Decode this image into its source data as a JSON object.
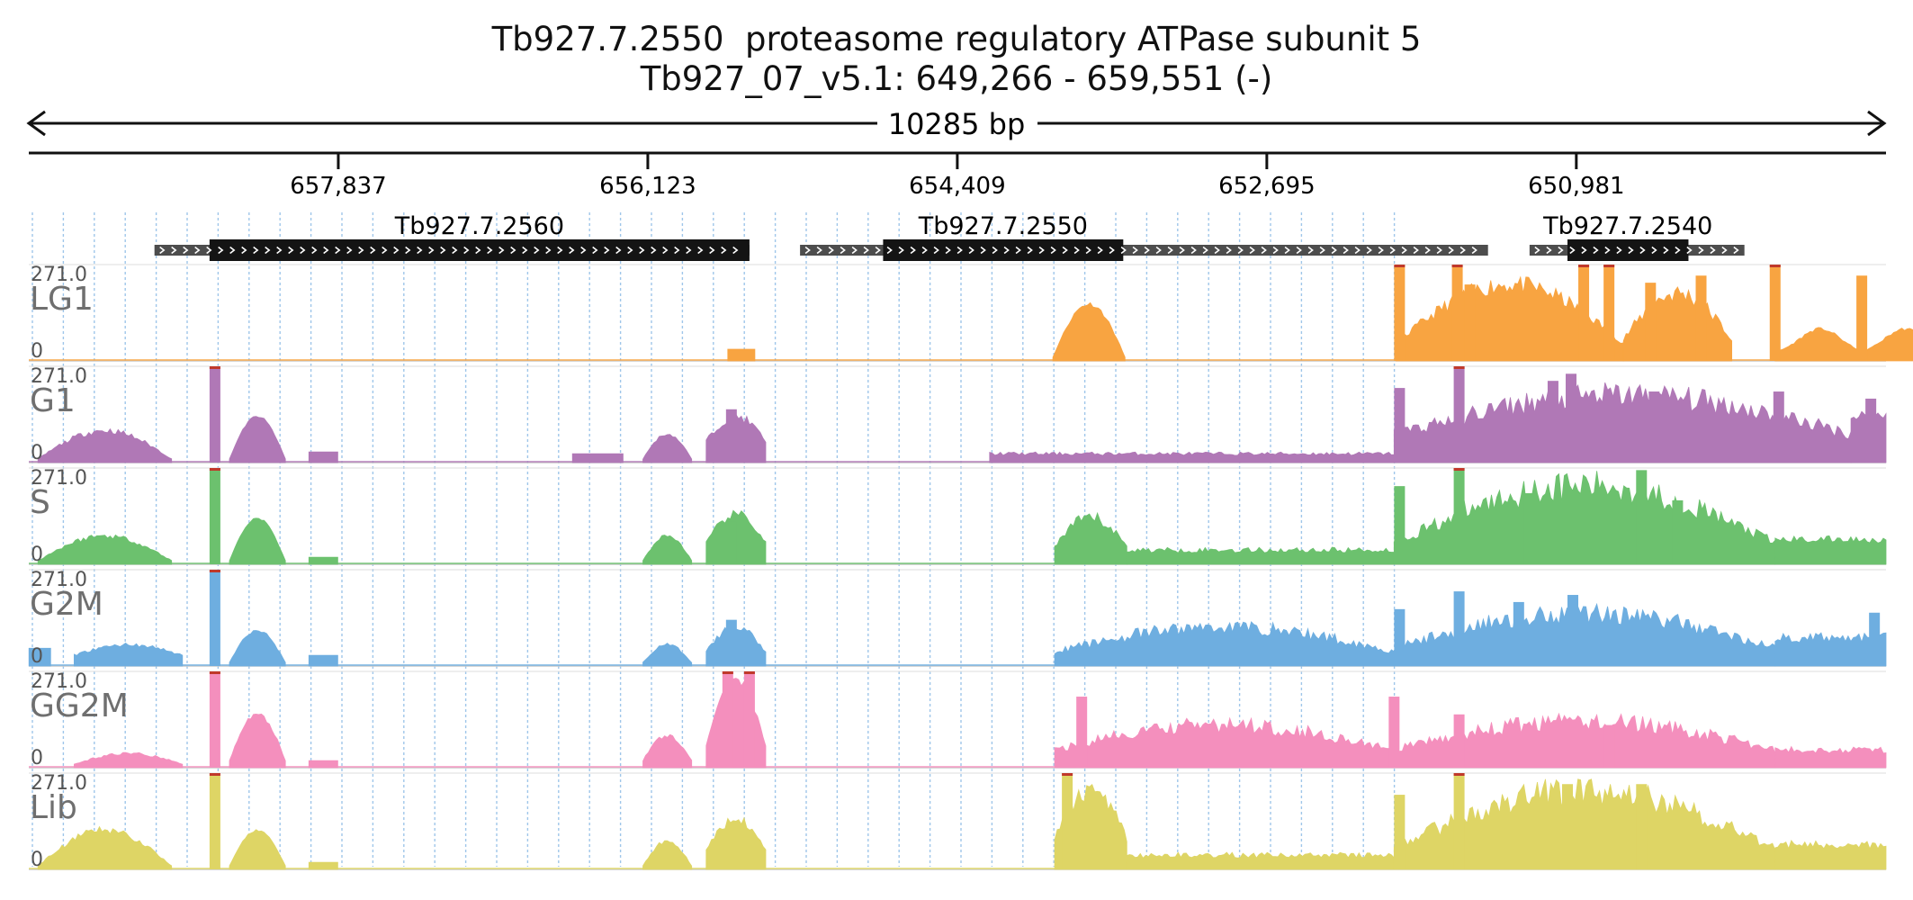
{
  "header": {
    "title_line1": "Tb927.7.2550  proteasome regulatory ATPase subunit 5",
    "title_line2": "Tb927_07_v5.1: 649,266 - 659,551 (-)"
  },
  "span": {
    "label": "10285 bp"
  },
  "chart_data": {
    "type": "area",
    "x_axis": {
      "reversed": true,
      "range": [
        659551,
        649266
      ],
      "ticks": [
        657837,
        656123,
        654409,
        652695,
        650981
      ],
      "tick_labels": [
        "657,837",
        "656,123",
        "654,409",
        "652,695",
        "650,981"
      ]
    },
    "genes": [
      {
        "name": "Tb927.7.2560",
        "utr": [
          658855,
          655560
        ],
        "cds": [
          658550,
          655560
        ]
      },
      {
        "name": "Tb927.7.2550",
        "utr": [
          655280,
          651470
        ],
        "cds": [
          654820,
          653490
        ]
      },
      {
        "name": "Tb927.7.2540",
        "utr": [
          651240,
          650050
        ],
        "cds": [
          651030,
          650360
        ]
      }
    ],
    "ylim": [
      0,
      271.0
    ],
    "tracks": [
      {
        "name": "LG1",
        "scale_max": "271.0",
        "scale_min": "0",
        "color": "#f8a441",
        "segments": [
          {
            "start": 655680,
            "end": 655530,
            "profile": "flat",
            "peak": 33
          },
          {
            "start": 653880,
            "end": 653480,
            "profile": "hump",
            "base": 10,
            "peak": 160,
            "noise": 0.08
          },
          {
            "start": 651980,
            "end": 650720,
            "profile": "hump",
            "base": 50,
            "peak": 215,
            "noise": 0.25
          },
          {
            "start": 650720,
            "end": 650120,
            "profile": "hump",
            "base": 60,
            "peak": 190,
            "noise": 0.3
          },
          {
            "start": 649880,
            "end": 648880,
            "profile": "bimodal",
            "base": 20,
            "peak": 90,
            "noise": 0.1
          }
        ],
        "spikes": [
          [
            651960,
            271
          ],
          [
            651640,
            271
          ],
          [
            651570,
            215
          ],
          [
            650940,
            271
          ],
          [
            650800,
            271
          ],
          [
            650570,
            220
          ],
          [
            650290,
            240
          ],
          [
            649880,
            271
          ],
          [
            649400,
            240
          ]
        ]
      },
      {
        "name": "G1",
        "scale_max": "271.0",
        "scale_min": "0",
        "color": "#b078b6",
        "segments": [
          {
            "start": 659500,
            "end": 658760,
            "profile": "hump",
            "base": 10,
            "peak": 90,
            "noise": 0.2
          },
          {
            "start": 658440,
            "end": 658130,
            "profile": "hump",
            "base": 10,
            "peak": 130,
            "noise": 0.05
          },
          {
            "start": 658000,
            "end": 657840,
            "profile": "flat",
            "peak": 30
          },
          {
            "start": 656540,
            "end": 656260,
            "profile": "flat",
            "peak": 25
          },
          {
            "start": 656150,
            "end": 655880,
            "profile": "hump",
            "base": 10,
            "peak": 80,
            "noise": 0.1
          },
          {
            "start": 655800,
            "end": 655470,
            "profile": "hump",
            "base": 60,
            "peak": 130,
            "noise": 0.2
          },
          {
            "start": 654230,
            "end": 651990,
            "profile": "flat",
            "peak": 25,
            "noise": 0.4
          },
          {
            "start": 651990,
            "end": 649460,
            "profile": "hump",
            "base": 80,
            "peak": 190,
            "noise": 0.4
          },
          {
            "start": 649460,
            "end": 649266,
            "profile": "flat",
            "peak": 130,
            "noise": 0.3
          }
        ],
        "spikes": [
          [
            658520,
            271
          ],
          [
            655660,
            150
          ],
          [
            651960,
            210
          ],
          [
            651630,
            271
          ],
          [
            651110,
            230
          ],
          [
            651010,
            250
          ],
          [
            650550,
            200
          ],
          [
            649860,
            200
          ],
          [
            649350,
            180
          ]
        ]
      },
      {
        "name": "S",
        "scale_max": "271.0",
        "scale_min": "0",
        "color": "#6cc16e",
        "segments": [
          {
            "start": 659500,
            "end": 658760,
            "profile": "hump",
            "base": 10,
            "peak": 80,
            "noise": 0.2
          },
          {
            "start": 658440,
            "end": 658130,
            "profile": "hump",
            "base": 10,
            "peak": 130,
            "noise": 0.05
          },
          {
            "start": 658000,
            "end": 657840,
            "profile": "flat",
            "peak": 20
          },
          {
            "start": 656150,
            "end": 655880,
            "profile": "hump",
            "base": 10,
            "peak": 80,
            "noise": 0.15
          },
          {
            "start": 655800,
            "end": 655470,
            "profile": "hump",
            "base": 60,
            "peak": 140,
            "noise": 0.2
          },
          {
            "start": 653870,
            "end": 653470,
            "profile": "hump",
            "base": 50,
            "peak": 130,
            "noise": 0.3
          },
          {
            "start": 653470,
            "end": 651990,
            "profile": "flat",
            "peak": 40,
            "noise": 0.4
          },
          {
            "start": 651990,
            "end": 649880,
            "profile": "hump",
            "base": 60,
            "peak": 220,
            "noise": 0.4
          },
          {
            "start": 649880,
            "end": 649266,
            "profile": "flat",
            "peak": 70,
            "noise": 0.3
          }
        ],
        "spikes": [
          [
            658520,
            271
          ],
          [
            655660,
            120
          ],
          [
            651960,
            220
          ],
          [
            651630,
            271
          ],
          [
            651240,
            200
          ],
          [
            650620,
            265
          ],
          [
            650420,
            180
          ]
        ]
      },
      {
        "name": "G2M",
        "scale_max": "271.0",
        "scale_min": "0",
        "color": "#6eaee0",
        "segments": [
          {
            "start": 659550,
            "end": 659430,
            "profile": "flat",
            "peak": 50
          },
          {
            "start": 659300,
            "end": 658700,
            "profile": "hump",
            "base": 30,
            "peak": 60,
            "noise": 0.2
          },
          {
            "start": 658440,
            "end": 658130,
            "profile": "hump",
            "base": 10,
            "peak": 100,
            "noise": 0.1
          },
          {
            "start": 658000,
            "end": 657840,
            "profile": "flat",
            "peak": 30
          },
          {
            "start": 656150,
            "end": 655880,
            "profile": "hump",
            "base": 10,
            "peak": 60,
            "noise": 0.15
          },
          {
            "start": 655800,
            "end": 655470,
            "profile": "hump",
            "base": 40,
            "peak": 110,
            "noise": 0.2
          },
          {
            "start": 653870,
            "end": 651990,
            "profile": "hump",
            "base": 40,
            "peak": 110,
            "noise": 0.4
          },
          {
            "start": 651990,
            "end": 649880,
            "profile": "hump",
            "base": 50,
            "peak": 150,
            "noise": 0.4
          },
          {
            "start": 649880,
            "end": 649266,
            "profile": "flat",
            "peak": 80,
            "noise": 0.35
          }
        ],
        "spikes": [
          [
            658520,
            271
          ],
          [
            655660,
            130
          ],
          [
            651960,
            160
          ],
          [
            651630,
            210
          ],
          [
            651300,
            180
          ],
          [
            651000,
            200
          ],
          [
            649330,
            150
          ]
        ]
      },
      {
        "name": "GG2M",
        "scale_max": "271.0",
        "scale_min": "0",
        "color": "#f48fbd",
        "segments": [
          {
            "start": 659300,
            "end": 658700,
            "profile": "hump",
            "base": 10,
            "peak": 40,
            "noise": 0.2
          },
          {
            "start": 658440,
            "end": 658130,
            "profile": "hump",
            "base": 20,
            "peak": 150,
            "noise": 0.1
          },
          {
            "start": 658000,
            "end": 657840,
            "profile": "flat",
            "peak": 20
          },
          {
            "start": 656150,
            "end": 655880,
            "profile": "hump",
            "base": 20,
            "peak": 90,
            "noise": 0.15
          },
          {
            "start": 655800,
            "end": 655470,
            "profile": "hump",
            "base": 60,
            "peak": 250,
            "noise": 0.1
          },
          {
            "start": 653870,
            "end": 651990,
            "profile": "hump",
            "base": 50,
            "peak": 120,
            "noise": 0.4
          },
          {
            "start": 651990,
            "end": 649880,
            "profile": "hump",
            "base": 50,
            "peak": 130,
            "noise": 0.4
          },
          {
            "start": 649880,
            "end": 649266,
            "profile": "flat",
            "peak": 50,
            "noise": 0.4
          }
        ],
        "spikes": [
          [
            658520,
            271
          ],
          [
            655680,
            271
          ],
          [
            655560,
            271
          ],
          [
            653720,
            200
          ],
          [
            651990,
            200
          ],
          [
            651630,
            150
          ],
          [
            650800,
            120
          ]
        ]
      },
      {
        "name": "Lib",
        "scale_max": "271.0",
        "scale_min": "0",
        "color": "#ded565",
        "segments": [
          {
            "start": 659500,
            "end": 658760,
            "profile": "hump",
            "base": 10,
            "peak": 110,
            "noise": 0.2
          },
          {
            "start": 658440,
            "end": 658130,
            "profile": "hump",
            "base": 10,
            "peak": 110,
            "noise": 0.05
          },
          {
            "start": 658000,
            "end": 657840,
            "profile": "flat",
            "peak": 20
          },
          {
            "start": 656150,
            "end": 655880,
            "profile": "hump",
            "base": 10,
            "peak": 80,
            "noise": 0.15
          },
          {
            "start": 655800,
            "end": 655470,
            "profile": "hump",
            "base": 60,
            "peak": 140,
            "noise": 0.2
          },
          {
            "start": 653870,
            "end": 653470,
            "profile": "hump",
            "base": 90,
            "peak": 220,
            "noise": 0.3
          },
          {
            "start": 653470,
            "end": 651990,
            "profile": "flat",
            "peak": 40,
            "noise": 0.4
          },
          {
            "start": 651990,
            "end": 649880,
            "profile": "hump",
            "base": 60,
            "peak": 220,
            "noise": 0.4
          },
          {
            "start": 649880,
            "end": 649266,
            "profile": "flat",
            "peak": 70,
            "noise": 0.35
          }
        ],
        "spikes": [
          [
            658520,
            271
          ],
          [
            653800,
            271
          ],
          [
            651960,
            210
          ],
          [
            651630,
            271
          ],
          [
            651030,
            240
          ],
          [
            650620,
            240
          ]
        ]
      }
    ]
  }
}
